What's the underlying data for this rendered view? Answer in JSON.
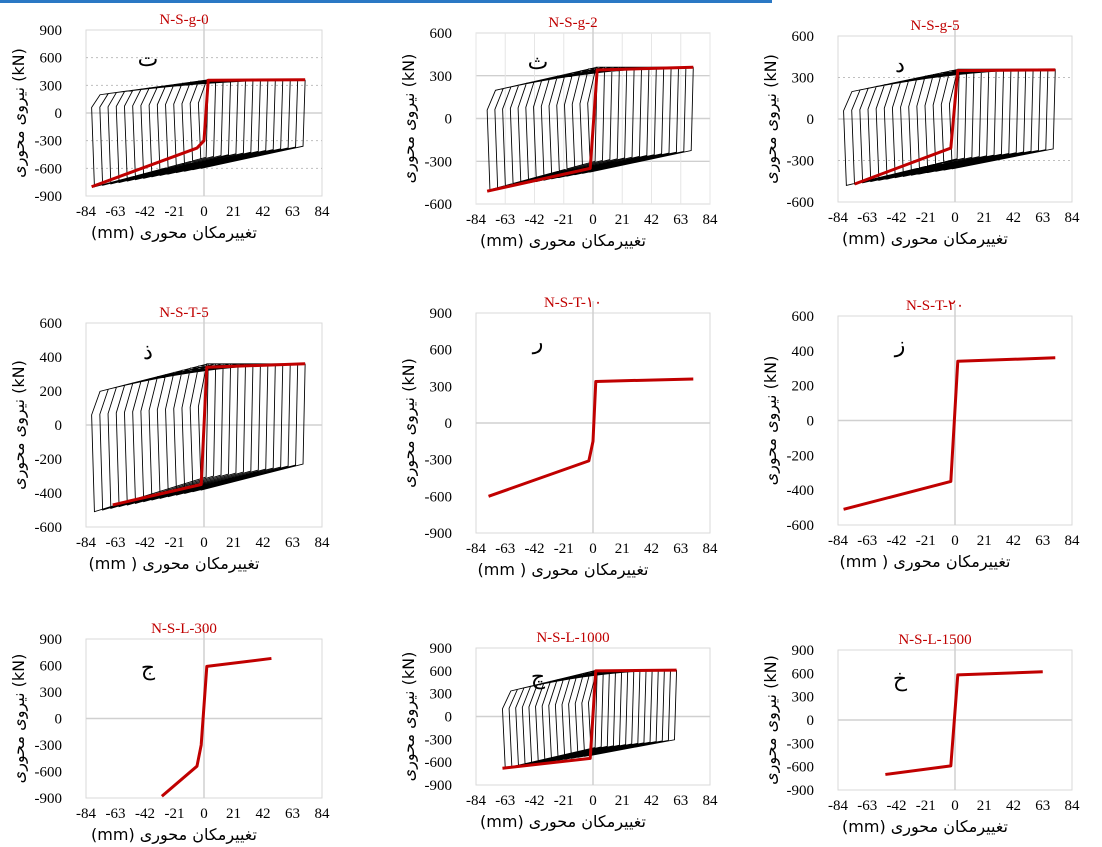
{
  "xlabel_fa": "تغییرمکان محوری",
  "ylabel_fa": "نیروی محوری",
  "unit": "(mm)",
  "unit_y": "(kN)",
  "colors": {
    "envelope": "#c00000",
    "hysteresis": "#000000",
    "title": "#c00000",
    "grid": "#bfbfbf",
    "axis": "#d0d0d0"
  },
  "chart_data": [
    {
      "type": "line",
      "title": "N-S-g-0",
      "panel_letter": "ت",
      "xlabel": "تغییرمکان محوری (mm)",
      "ylabel": "نیروی محوری (kN)",
      "xticks": [
        -84,
        -63,
        -42,
        -21,
        0,
        21,
        42,
        63,
        84
      ],
      "yticks": [
        -900,
        -600,
        -300,
        0,
        300,
        600,
        900
      ],
      "xlim": [
        -84,
        84
      ],
      "ylim": [
        -900,
        900
      ],
      "grid": "dotted-horizontal",
      "hysteresis": true,
      "hyst_xmin": -80,
      "hyst_xmax": 72,
      "hyst_top": 360,
      "hyst_bottom": -800,
      "series": [
        {
          "x": [
            -80,
            -5,
            0,
            3,
            72
          ],
          "y": [
            -800,
            -380,
            -300,
            355,
            360
          ]
        }
      ]
    },
    {
      "type": "line",
      "title": "N-S-g-2",
      "panel_letter": "ث",
      "xlabel": "تغییرمکان محوری (mm)",
      "ylabel": "نیروی محوری (kN)",
      "xticks": [
        -84,
        -63,
        -42,
        -21,
        0,
        21,
        42,
        63,
        84
      ],
      "yticks": [
        -600,
        -300,
        0,
        300,
        600
      ],
      "xlim": [
        -84,
        84
      ],
      "ylim": [
        -600,
        600
      ],
      "grid": "solid",
      "hysteresis": true,
      "hyst_xmin": -76,
      "hyst_xmax": 72,
      "hyst_top": 360,
      "hyst_bottom": -500,
      "series": [
        {
          "x": [
            -76,
            -2,
            3,
            72
          ],
          "y": [
            -510,
            -350,
            340,
            360
          ]
        }
      ]
    },
    {
      "type": "line",
      "title": "N-S-g-5",
      "panel_letter": "د",
      "xlabel": "تغییرمکان محوری (mm)",
      "ylabel": "نیروی محوری (kN)",
      "xticks": [
        -84,
        -63,
        -42,
        -21,
        0,
        21,
        42,
        63,
        84
      ],
      "yticks": [
        -600,
        -300,
        0,
        300,
        600
      ],
      "xlim": [
        -84,
        84
      ],
      "ylim": [
        -600,
        600
      ],
      "grid": "dotted-horizontal",
      "hysteresis": true,
      "hyst_xmin": -80,
      "hyst_xmax": 72,
      "hyst_top": 360,
      "hyst_bottom": -480,
      "series": [
        {
          "x": [
            -72,
            -3,
            2,
            72
          ],
          "y": [
            -470,
            -210,
            350,
            355
          ]
        }
      ]
    },
    {
      "type": "line",
      "title": "N-S-T-5",
      "panel_letter": "ذ",
      "xlabel": "تغییرمکان محوری ( mm)",
      "ylabel": "نیروی محوری (kN)",
      "xticks": [
        -84,
        -63,
        -42,
        -21,
        0,
        21,
        42,
        63,
        84
      ],
      "yticks": [
        -600,
        -400,
        -200,
        0,
        200,
        400,
        600
      ],
      "xlim": [
        -84,
        84
      ],
      "ylim": [
        -600,
        600
      ],
      "grid": "none",
      "hysteresis": true,
      "hyst_xmin": -80,
      "hyst_xmax": 72,
      "hyst_top": 360,
      "hyst_bottom": -510,
      "series": [
        {
          "x": [
            -65,
            -2,
            2,
            72
          ],
          "y": [
            -470,
            -350,
            340,
            360
          ]
        }
      ]
    },
    {
      "type": "line",
      "title": "N-S-T-۱۰",
      "panel_letter": "ر",
      "xlabel": "تغییرمکان محوری ( mm)",
      "ylabel": "نیروی محوری (kN)",
      "xticks": [
        -84,
        -63,
        -42,
        -21,
        0,
        21,
        42,
        63,
        84
      ],
      "yticks": [
        -900,
        -600,
        -300,
        0,
        300,
        600,
        900
      ],
      "xlim": [
        -84,
        84
      ],
      "ylim": [
        -900,
        900
      ],
      "grid": "none",
      "hysteresis": false,
      "series": [
        {
          "x": [
            -75,
            -3,
            0,
            2,
            72
          ],
          "y": [
            -600,
            -310,
            -150,
            340,
            360
          ]
        }
      ]
    },
    {
      "type": "line",
      "title": "N-S-T-۲۰",
      "panel_letter": "ز",
      "xlabel": "تغییرمکان محوری ( mm)",
      "ylabel": "نیروی محوری (kN)",
      "xticks": [
        -84,
        -63,
        -42,
        -21,
        0,
        21,
        42,
        63,
        84
      ],
      "yticks": [
        -600,
        -400,
        -200,
        0,
        200,
        400,
        600
      ],
      "xlim": [
        -84,
        84
      ],
      "ylim": [
        -600,
        600
      ],
      "grid": "none",
      "hysteresis": false,
      "series": [
        {
          "x": [
            -80,
            -3,
            2,
            72
          ],
          "y": [
            -510,
            -350,
            340,
            360
          ]
        }
      ]
    },
    {
      "type": "line",
      "title": "N-S-L-300",
      "panel_letter": "ج",
      "xlabel": "تغییرمکان محوری (mm)",
      "ylabel": "نیروی محوری (kN)",
      "xticks": [
        -84,
        -63,
        -42,
        -21,
        0,
        21,
        42,
        63,
        84
      ],
      "yticks": [
        -900,
        -600,
        -300,
        0,
        300,
        600,
        900
      ],
      "xlim": [
        -84,
        84
      ],
      "ylim": [
        -900,
        900
      ],
      "grid": "none",
      "hysteresis": false,
      "series": [
        {
          "x": [
            -30,
            -5,
            -2,
            2,
            48
          ],
          "y": [
            -880,
            -540,
            -300,
            590,
            680
          ]
        }
      ]
    },
    {
      "type": "line",
      "title": "N-S-L-1000",
      "panel_letter": "چ",
      "xlabel": "تغییرمکان محوری (mm)",
      "ylabel": "نیروی محوری (kN)",
      "xticks": [
        -84,
        -63,
        -42,
        -21,
        0,
        21,
        42,
        63,
        84
      ],
      "yticks": [
        -900,
        -600,
        -300,
        0,
        300,
        600,
        900
      ],
      "xlim": [
        -84,
        84
      ],
      "ylim": [
        -900,
        900
      ],
      "grid": "none",
      "hysteresis": true,
      "hyst_xmin": -65,
      "hyst_xmax": 60,
      "hyst_top": 610,
      "hyst_bottom": -680,
      "series": [
        {
          "x": [
            -65,
            -2,
            2,
            60
          ],
          "y": [
            -680,
            -550,
            600,
            610
          ]
        }
      ]
    },
    {
      "type": "line",
      "title": "N-S-L-1500",
      "panel_letter": "خ",
      "xlabel": "تغییرمکان محوری (mm)",
      "ylabel": "نیروی محوری (kN)",
      "xticks": [
        -84,
        -63,
        -42,
        -21,
        0,
        21,
        42,
        63,
        84
      ],
      "yticks": [
        -900,
        -600,
        -300,
        0,
        300,
        600,
        900
      ],
      "xlim": [
        -84,
        84
      ],
      "ylim": [
        -900,
        900
      ],
      "grid": "none",
      "hysteresis": false,
      "series": [
        {
          "x": [
            -50,
            -3,
            2,
            63
          ],
          "y": [
            -700,
            -590,
            580,
            620
          ]
        }
      ]
    }
  ]
}
